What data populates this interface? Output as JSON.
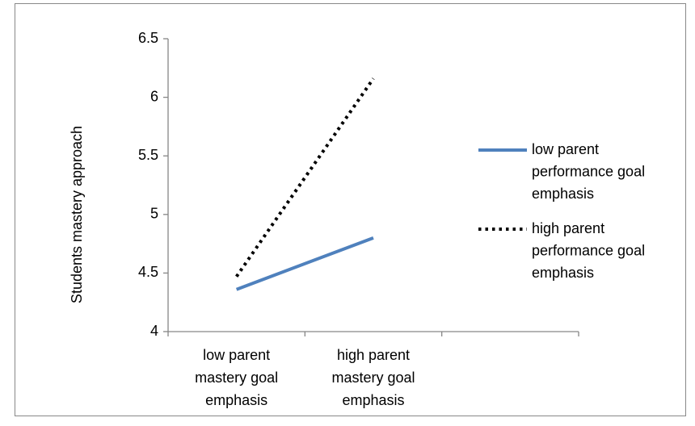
{
  "chart_data": {
    "type": "line",
    "y_label": "Students mastery approach",
    "categories": [
      "low parent mastery goal emphasis",
      "high parent mastery goal emphasis",
      null
    ],
    "series": [
      {
        "name": "low parent performance goal emphasis",
        "color": "#4f81bd",
        "style": "solid",
        "values": [
          4.36,
          4.8,
          null
        ]
      },
      {
        "name": "high parent performance goal emphasis",
        "color": "#000000",
        "style": "dotted",
        "values": [
          4.47,
          6.16,
          null
        ]
      }
    ],
    "ylim": [
      4,
      6.5
    ],
    "yticks": [
      4,
      4.5,
      5,
      5.5,
      6,
      6.5
    ],
    "legend": "right"
  }
}
